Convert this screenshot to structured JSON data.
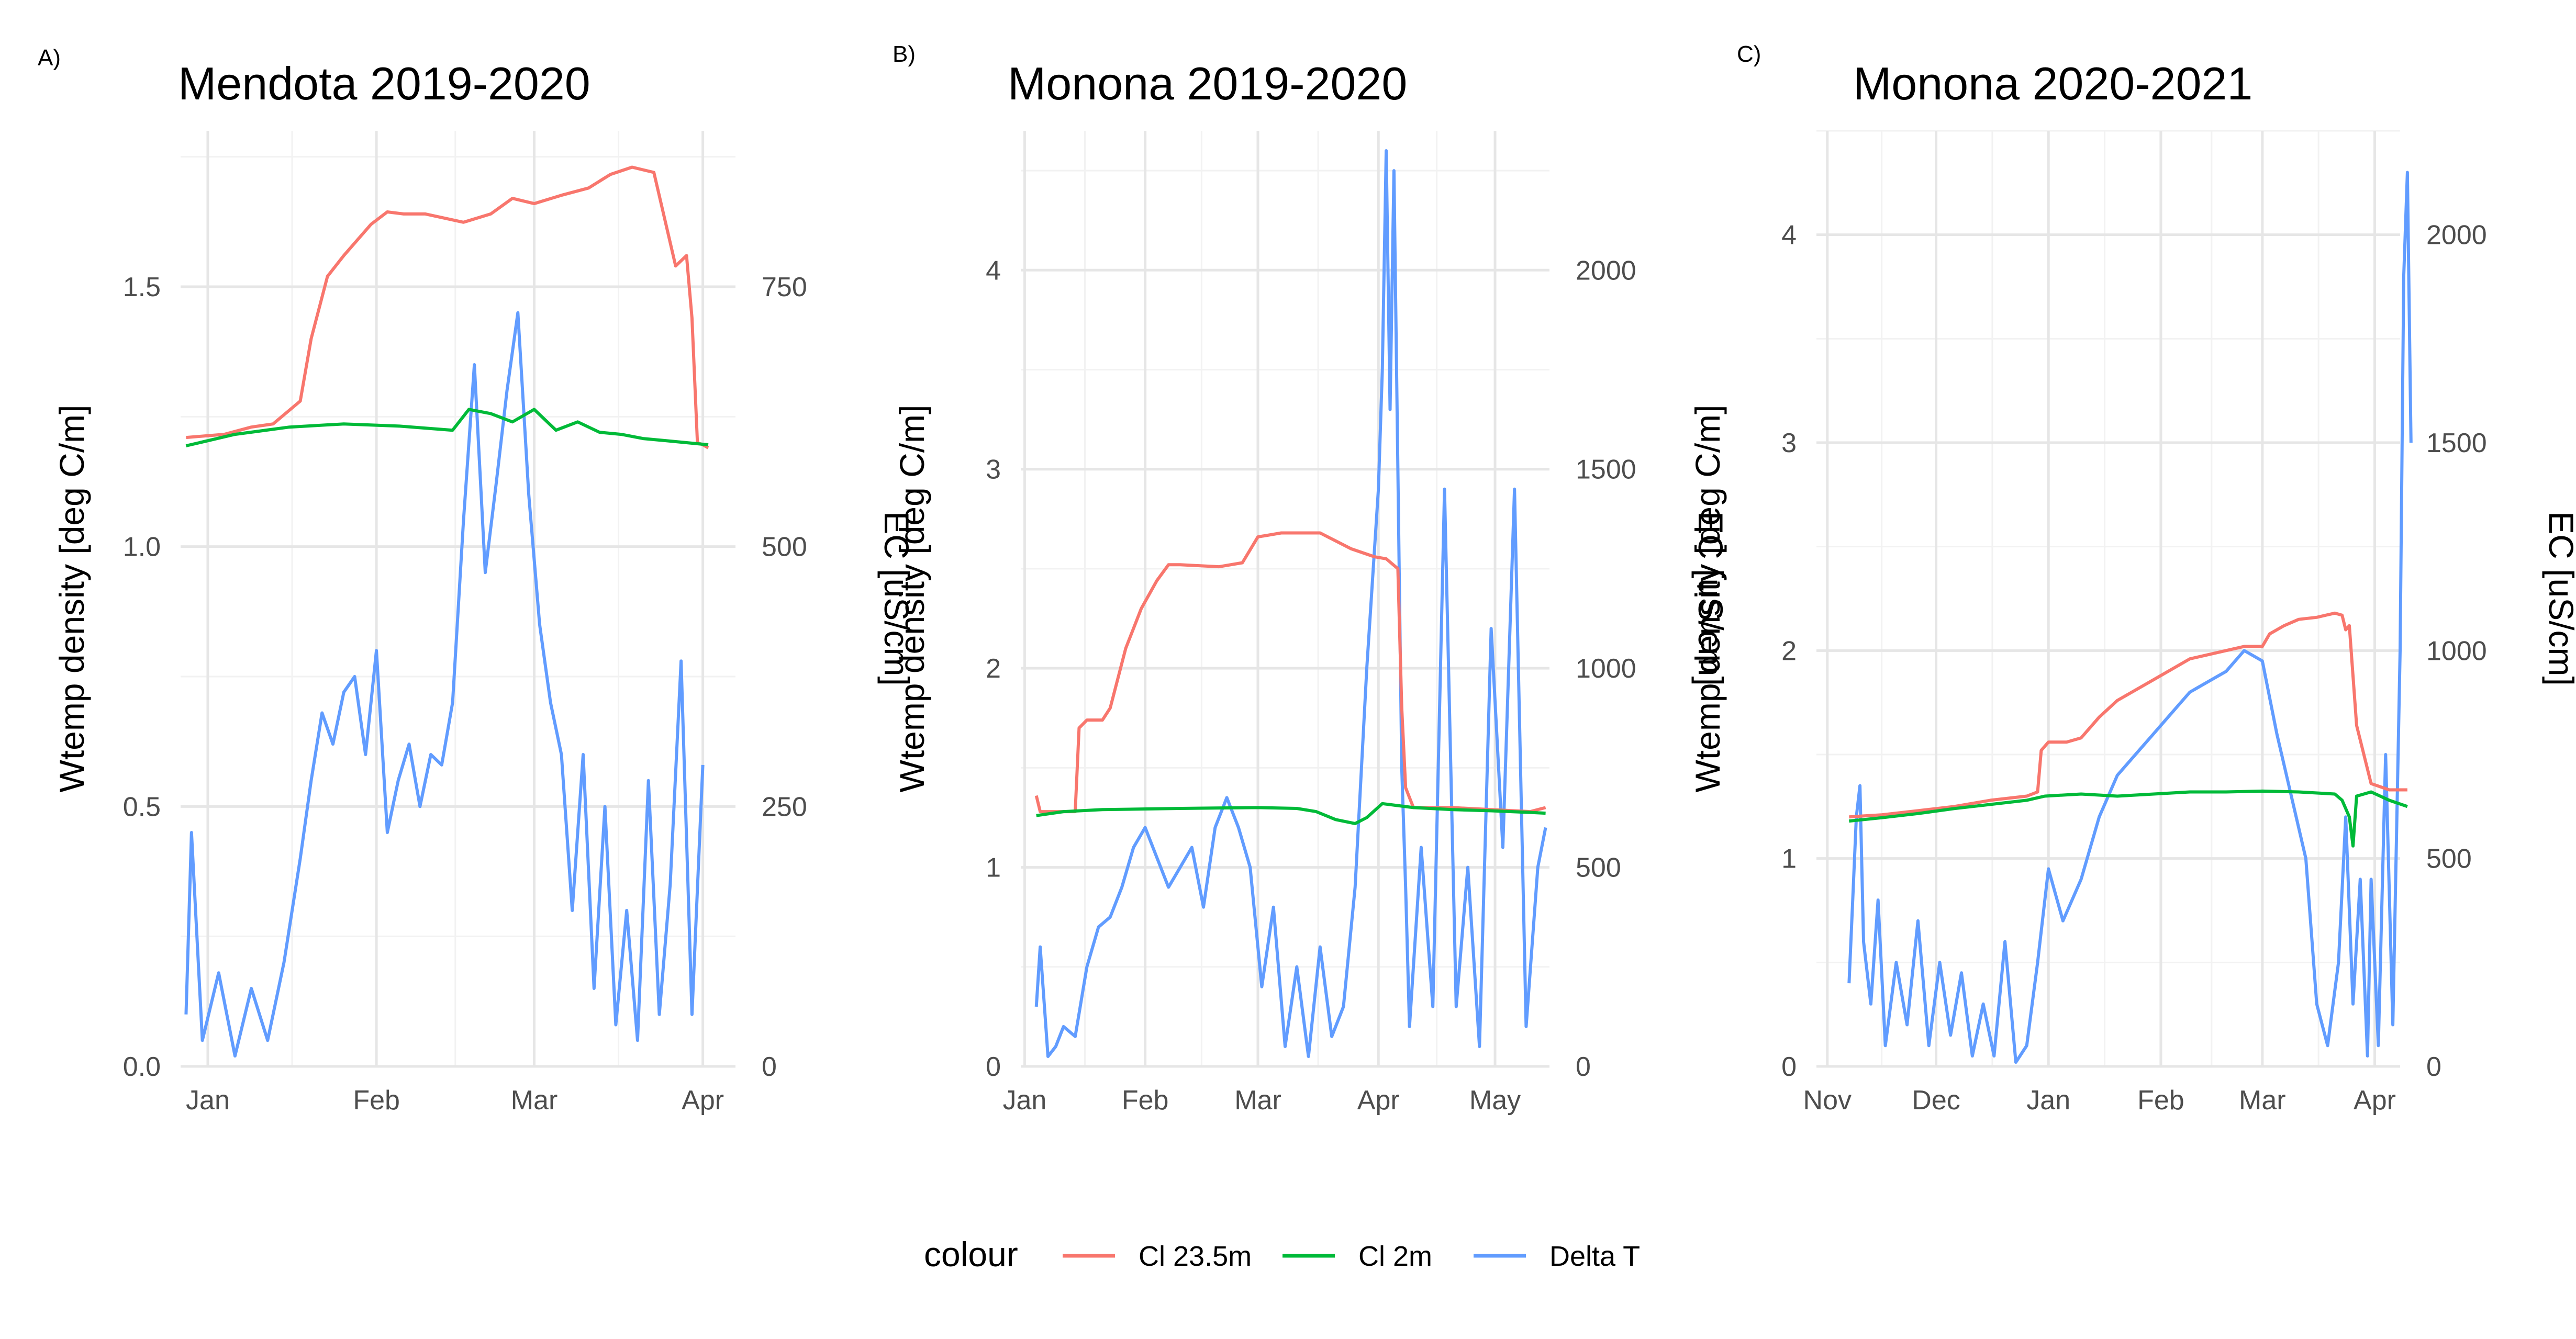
{
  "legend": {
    "title": "colour",
    "entries": [
      {
        "label": "Cl 23.5m",
        "color": "#F8766D"
      },
      {
        "label": "Cl 2m",
        "color": "#00BA38"
      },
      {
        "label": "Delta T",
        "color": "#619CFF"
      }
    ]
  },
  "chart_data": [
    {
      "type": "line",
      "tag": "A)",
      "title": "Mendota 2019-2020",
      "xlabel": "",
      "ylabel": "Wtemp density [deg C/m]",
      "y2label": "EC [uS/cm]",
      "ylim": [
        0,
        1.8
      ],
      "y2lim": [
        0,
        900
      ],
      "grid": true,
      "xlim": [
        -5,
        97
      ],
      "xticks": [
        {
          "label": "Jan",
          "x": 0
        },
        {
          "label": "Feb",
          "x": 31
        },
        {
          "label": "Mar",
          "x": 60
        },
        {
          "label": "Apr",
          "x": 91
        }
      ],
      "yticks": [
        {
          "label": "0.0",
          "y": 0
        },
        {
          "label": "0.5",
          "y": 0.5
        },
        {
          "label": "1.0",
          "y": 1.0
        },
        {
          "label": "1.5",
          "y": 1.5
        }
      ],
      "y2ticks": [
        {
          "label": "0",
          "y": 0
        },
        {
          "label": "250",
          "y": 250
        },
        {
          "label": "500",
          "y": 500
        },
        {
          "label": "750",
          "y": 750
        }
      ],
      "series": [
        {
          "name": "Cl 23.5m",
          "axis": "right",
          "x": [
            -4,
            3,
            8,
            12,
            17,
            19,
            22,
            25,
            30,
            33,
            36,
            40,
            47,
            52,
            56,
            60,
            65,
            70,
            74,
            78,
            82,
            84,
            86,
            88,
            89,
            90,
            91,
            92
          ],
          "y": [
            605,
            608,
            615,
            618,
            640,
            700,
            760,
            780,
            810,
            822,
            820,
            820,
            812,
            820,
            835,
            830,
            838,
            845,
            858,
            865,
            860,
            815,
            770,
            780,
            720,
            600,
            598,
            595
          ]
        },
        {
          "name": "Cl 2m",
          "axis": "right",
          "x": [
            -4,
            5,
            15,
            25,
            35,
            45,
            48,
            52,
            56,
            60,
            64,
            68,
            72,
            76,
            80,
            84,
            88,
            92
          ],
          "y": [
            597,
            608,
            615,
            618,
            616,
            612,
            632,
            628,
            620,
            632,
            612,
            620,
            610,
            608,
            604,
            602,
            600,
            598
          ]
        },
        {
          "name": "Delta T",
          "axis": "left",
          "x": [
            -4,
            -3,
            -1,
            2,
            5,
            8,
            11,
            14,
            17,
            19,
            21,
            23,
            25,
            27,
            29,
            31,
            33,
            35,
            37,
            39,
            41,
            43,
            45,
            47,
            49,
            51,
            53,
            55,
            57,
            59,
            61,
            63,
            65,
            67,
            69,
            71,
            73,
            75,
            77,
            79,
            81,
            83,
            85,
            87,
            89,
            91
          ],
          "y": [
            0.1,
            0.45,
            0.05,
            0.18,
            0.02,
            0.15,
            0.05,
            0.2,
            0.4,
            0.55,
            0.68,
            0.62,
            0.72,
            0.75,
            0.6,
            0.8,
            0.45,
            0.55,
            0.62,
            0.5,
            0.6,
            0.58,
            0.7,
            1.05,
            1.35,
            0.95,
            1.12,
            1.3,
            1.45,
            1.1,
            0.85,
            0.7,
            0.6,
            0.3,
            0.6,
            0.15,
            0.5,
            0.08,
            0.3,
            0.05,
            0.55,
            0.1,
            0.35,
            0.78,
            0.1,
            0.58
          ]
        }
      ]
    },
    {
      "type": "line",
      "tag": "B)",
      "title": "Monona 2019-2020",
      "xlabel": "",
      "ylabel": "Wtemp density [deg C/m]",
      "y2label": "EC [uS/cm]",
      "ylim": [
        0,
        4.7
      ],
      "y2lim": [
        0,
        2350
      ],
      "grid": true,
      "xlim": [
        -1,
        135
      ],
      "xticks": [
        {
          "label": "Jan",
          "x": 0
        },
        {
          "label": "Feb",
          "x": 31
        },
        {
          "label": "Mar",
          "x": 60
        },
        {
          "label": "Apr",
          "x": 91
        },
        {
          "label": "May",
          "x": 121
        }
      ],
      "yticks": [
        {
          "label": "0",
          "y": 0
        },
        {
          "label": "1",
          "y": 1
        },
        {
          "label": "2",
          "y": 2
        },
        {
          "label": "3",
          "y": 3
        },
        {
          "label": "4",
          "y": 4
        }
      ],
      "y2ticks": [
        {
          "label": "0",
          "y": 0
        },
        {
          "label": "500",
          "y": 500
        },
        {
          "label": "1000",
          "y": 1000
        },
        {
          "label": "1500",
          "y": 1500
        },
        {
          "label": "2000",
          "y": 2000
        }
      ],
      "series": [
        {
          "name": "Cl 23.5m",
          "axis": "right",
          "x": [
            3,
            4,
            13,
            14,
            16,
            20,
            22,
            26,
            30,
            34,
            37,
            40,
            50,
            56,
            60,
            66,
            72,
            76,
            80,
            84,
            90,
            93,
            96,
            97,
            98,
            100,
            110,
            120,
            130,
            134
          ],
          "y": [
            680,
            640,
            640,
            850,
            870,
            870,
            900,
            1050,
            1150,
            1220,
            1260,
            1260,
            1255,
            1265,
            1330,
            1340,
            1340,
            1340,
            1320,
            1300,
            1280,
            1275,
            1250,
            900,
            700,
            650,
            650,
            645,
            640,
            650
          ]
        },
        {
          "name": "Cl 2m",
          "axis": "right",
          "x": [
            3,
            10,
            20,
            40,
            60,
            70,
            75,
            80,
            85,
            88,
            92,
            96,
            100,
            110,
            120,
            130,
            134
          ],
          "y": [
            630,
            640,
            645,
            648,
            650,
            648,
            640,
            620,
            610,
            625,
            660,
            655,
            650,
            645,
            642,
            638,
            636
          ]
        },
        {
          "name": "Delta T",
          "axis": "left",
          "x": [
            3,
            4,
            6,
            8,
            10,
            13,
            16,
            19,
            22,
            25,
            28,
            31,
            34,
            37,
            40,
            43,
            46,
            49,
            52,
            55,
            58,
            61,
            64,
            67,
            70,
            73,
            76,
            79,
            82,
            85,
            88,
            91,
            92,
            93,
            94,
            95,
            96,
            97,
            98,
            99,
            102,
            105,
            108,
            111,
            114,
            117,
            120,
            123,
            126,
            129,
            132,
            134
          ],
          "y": [
            0.3,
            0.6,
            0.05,
            0.1,
            0.2,
            0.15,
            0.5,
            0.7,
            0.75,
            0.9,
            1.1,
            1.2,
            1.05,
            0.9,
            1.0,
            1.1,
            0.8,
            1.2,
            1.35,
            1.2,
            1.0,
            0.4,
            0.8,
            0.1,
            0.5,
            0.05,
            0.6,
            0.15,
            0.3,
            0.9,
            2.0,
            2.9,
            3.5,
            4.6,
            3.3,
            4.5,
            3.0,
            1.5,
            0.9,
            0.2,
            1.1,
            0.3,
            2.9,
            0.3,
            1.0,
            0.1,
            2.2,
            1.1,
            2.9,
            0.2,
            1.0,
            1.2
          ]
        }
      ]
    },
    {
      "type": "line",
      "tag": "C)",
      "title": "Monona 2020-2021",
      "xlabel": "",
      "ylabel": "Wtemp density [deg C/m]",
      "y2label": "EC [uS/cm]",
      "ylim": [
        0,
        4.5
      ],
      "y2lim": [
        0,
        2250
      ],
      "grid": true,
      "xlim": [
        -3,
        158
      ],
      "xticks": [
        {
          "label": "Nov",
          "x": 0
        },
        {
          "label": "Dec",
          "x": 30
        },
        {
          "label": "Jan",
          "x": 61
        },
        {
          "label": "Feb",
          "x": 92
        },
        {
          "label": "Mar",
          "x": 120
        },
        {
          "label": "Apr",
          "x": 151
        }
      ],
      "yticks": [
        {
          "label": "0",
          "y": 0
        },
        {
          "label": "1",
          "y": 1
        },
        {
          "label": "2",
          "y": 2
        },
        {
          "label": "3",
          "y": 3
        },
        {
          "label": "4",
          "y": 4
        }
      ],
      "y2ticks": [
        {
          "label": "0",
          "y": 0
        },
        {
          "label": "500",
          "y": 500
        },
        {
          "label": "1000",
          "y": 1000
        },
        {
          "label": "1500",
          "y": 1500
        },
        {
          "label": "2000",
          "y": 2000
        }
      ],
      "series": [
        {
          "name": "Cl 23.5m",
          "axis": "right",
          "x": [
            6,
            15,
            25,
            35,
            45,
            55,
            58,
            59,
            61,
            66,
            70,
            75,
            80,
            90,
            100,
            110,
            115,
            120,
            122,
            126,
            130,
            135,
            140,
            142,
            143,
            144,
            146,
            150,
            155,
            160
          ],
          "y": [
            600,
            605,
            615,
            625,
            640,
            650,
            660,
            760,
            780,
            780,
            790,
            840,
            880,
            930,
            980,
            1000,
            1010,
            1010,
            1040,
            1060,
            1075,
            1080,
            1090,
            1085,
            1050,
            1060,
            820,
            680,
            665,
            665
          ]
        },
        {
          "name": "Cl 2m",
          "axis": "right",
          "x": [
            6,
            15,
            25,
            35,
            45,
            55,
            60,
            70,
            80,
            90,
            100,
            110,
            120,
            130,
            140,
            142,
            144,
            145,
            146,
            150,
            155,
            160
          ],
          "y": [
            590,
            598,
            608,
            620,
            630,
            640,
            650,
            655,
            650,
            655,
            660,
            660,
            662,
            660,
            655,
            640,
            600,
            530,
            650,
            660,
            640,
            625
          ]
        },
        {
          "name": "Delta T",
          "axis": "left",
          "x": [
            6,
            7,
            8,
            9,
            10,
            12,
            14,
            16,
            19,
            22,
            25,
            28,
            31,
            34,
            37,
            40,
            43,
            46,
            49,
            52,
            55,
            58,
            61,
            65,
            70,
            75,
            80,
            85,
            90,
            95,
            100,
            105,
            110,
            115,
            120,
            124,
            128,
            132,
            135,
            138,
            141,
            143,
            145,
            147,
            149,
            150,
            152,
            154,
            156,
            158,
            159,
            160,
            161
          ],
          "y": [
            0.4,
            0.8,
            1.2,
            1.35,
            0.6,
            0.3,
            0.8,
            0.1,
            0.5,
            0.2,
            0.7,
            0.1,
            0.5,
            0.15,
            0.45,
            0.05,
            0.3,
            0.05,
            0.6,
            0.02,
            0.1,
            0.5,
            0.95,
            0.7,
            0.9,
            1.2,
            1.4,
            1.5,
            1.6,
            1.7,
            1.8,
            1.85,
            1.9,
            2.0,
            1.95,
            1.6,
            1.3,
            1.0,
            0.3,
            0.1,
            0.5,
            1.2,
            0.3,
            0.9,
            0.05,
            0.9,
            0.1,
            1.5,
            0.2,
            2.0,
            3.8,
            4.3,
            3.0
          ]
        }
      ]
    }
  ]
}
